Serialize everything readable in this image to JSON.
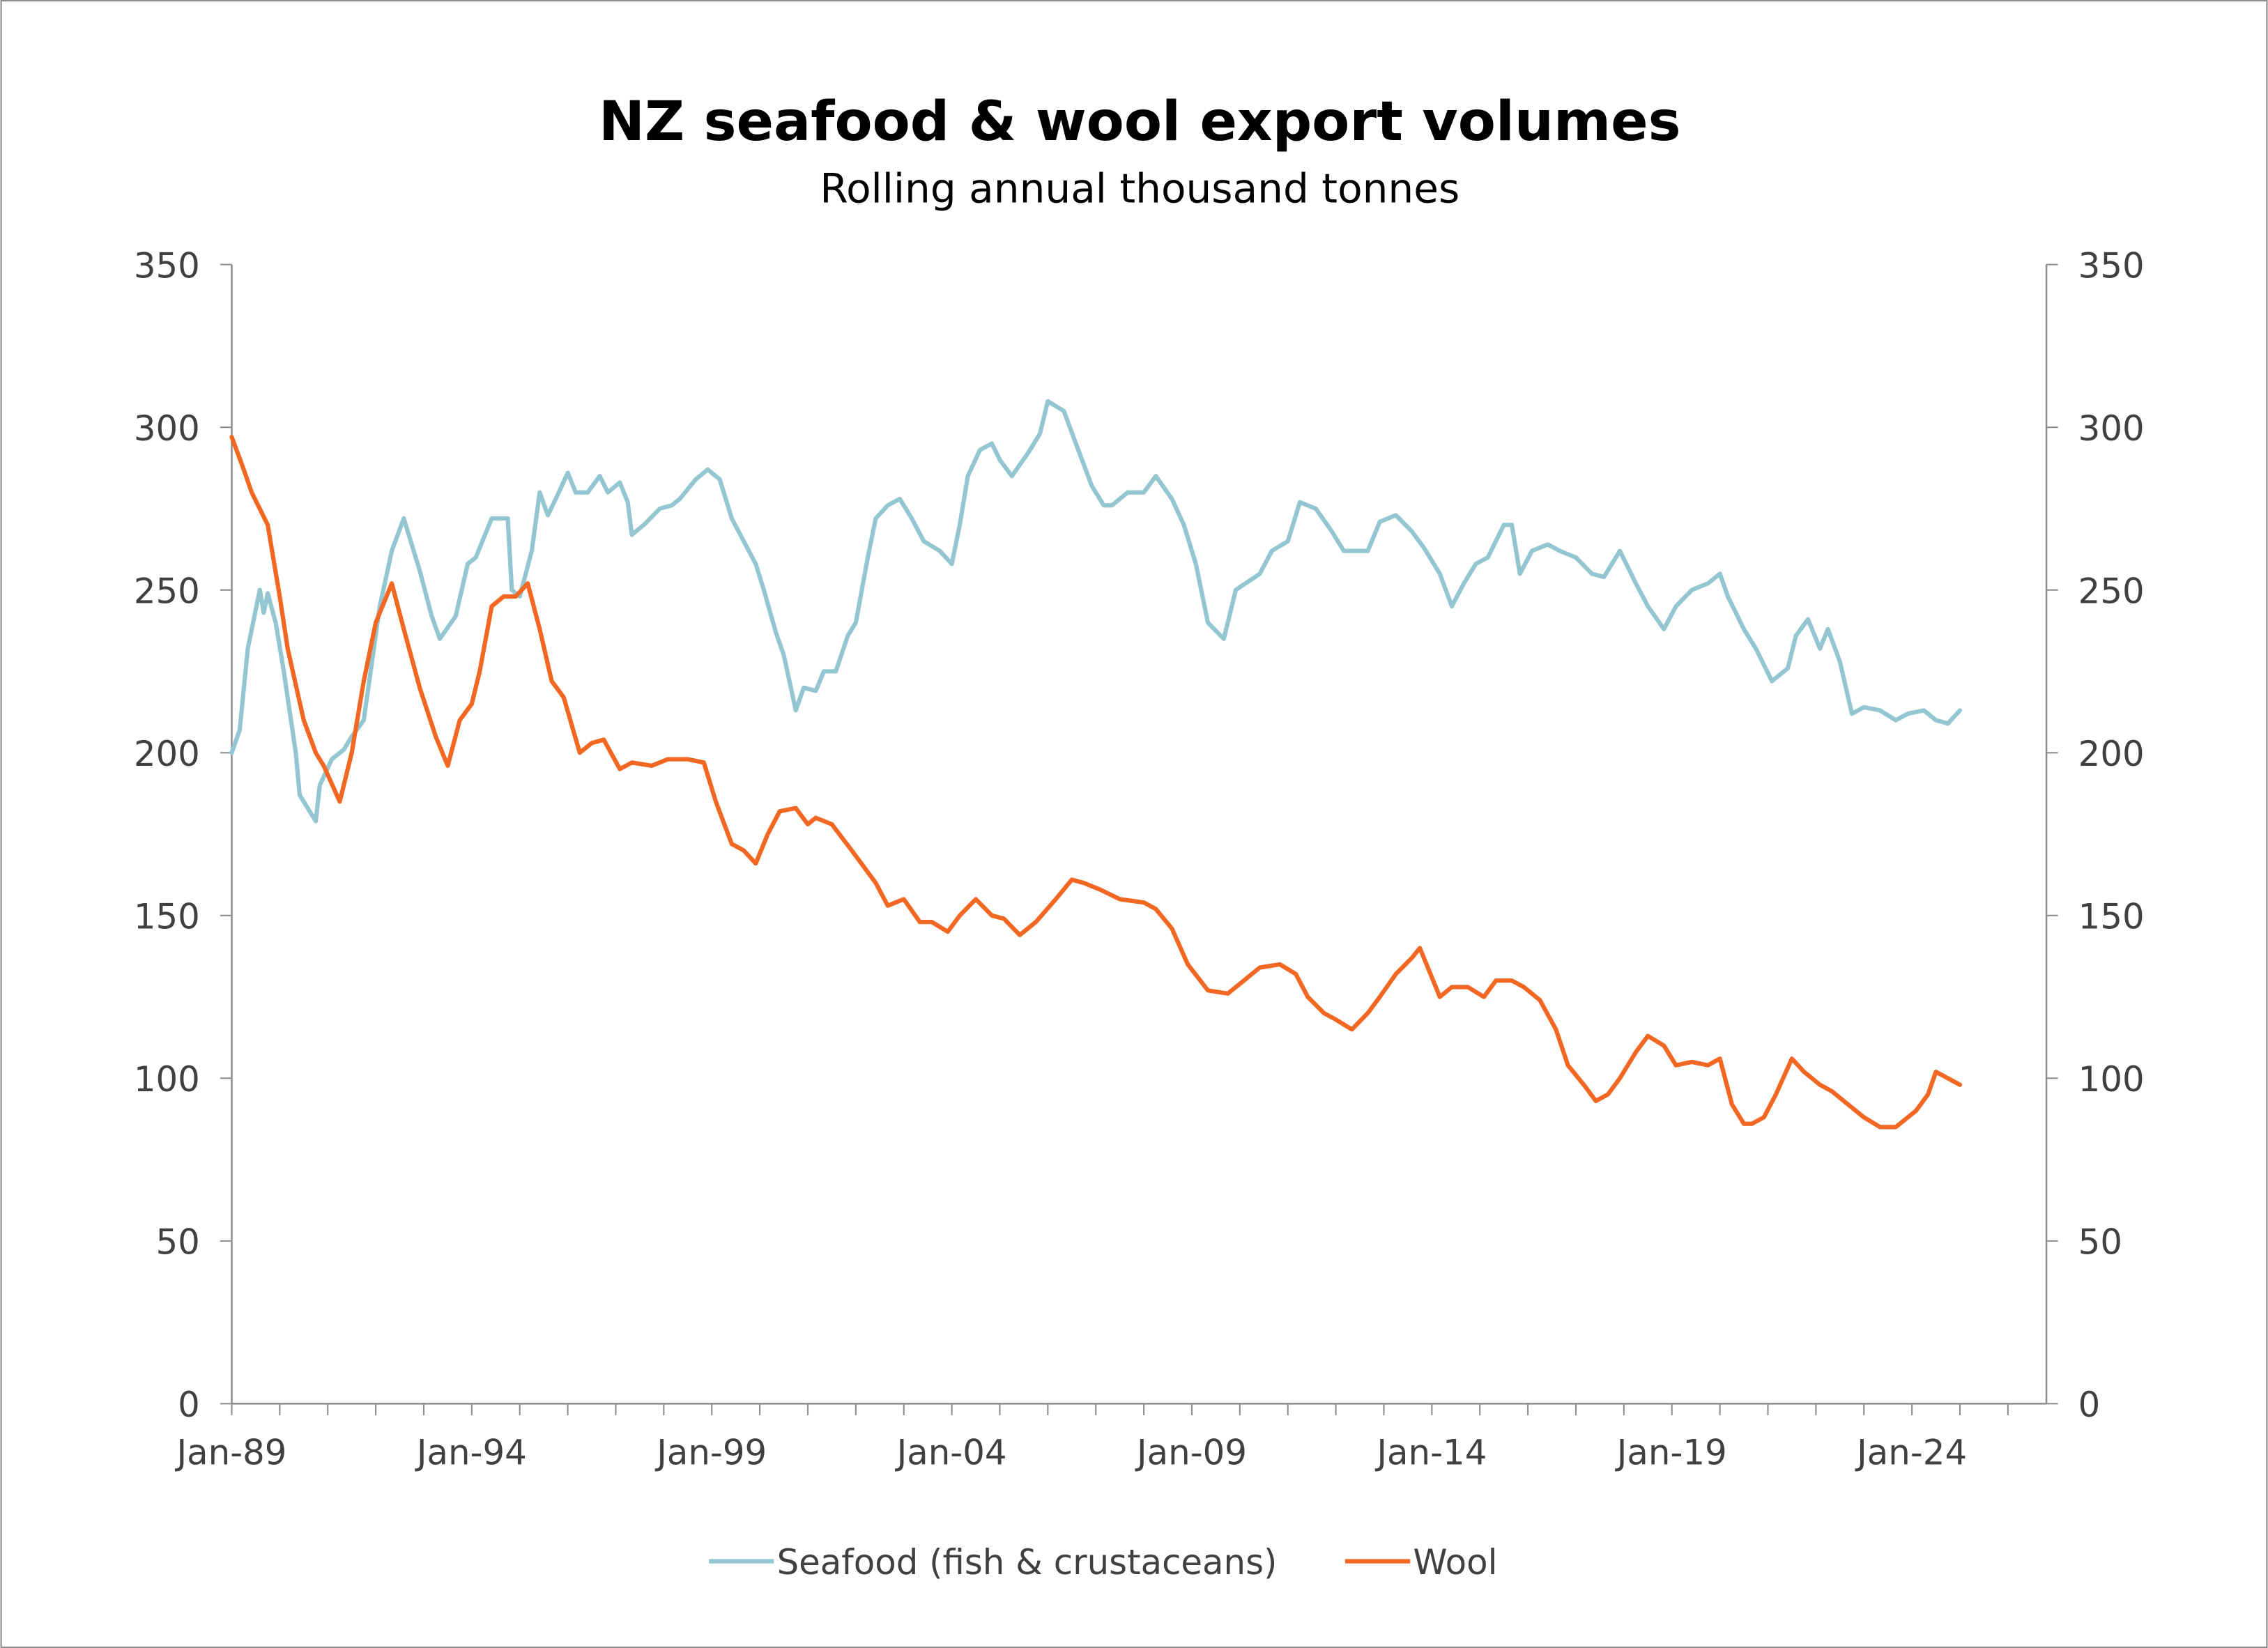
{
  "chart_data": {
    "type": "line",
    "title": "NZ seafood & wool export volumes",
    "subtitle": "Rolling annual thousand tonnes",
    "xlabel": "",
    "ylabel": "",
    "ylim": [
      0,
      350
    ],
    "y2lim": [
      0,
      350
    ],
    "yticks": [
      "0",
      "50",
      "100",
      "150",
      "200",
      "250",
      "300",
      "350"
    ],
    "xticks": [
      "Jan-89",
      "Jan-94",
      "Jan-99",
      "Jan-04",
      "Jan-09",
      "Jan-14",
      "Jan-19",
      "Jan-24"
    ],
    "xrange": [
      "1989-01",
      "2026-09"
    ],
    "grid": false,
    "legend_position": "bottom",
    "series": [
      {
        "name": "Seafood (fish & crustaceans)",
        "color": "#94C6D1",
        "points": [
          [
            "1989-01",
            200
          ],
          [
            "1989-03",
            207
          ],
          [
            "1989-05",
            232
          ],
          [
            "1989-08",
            250
          ],
          [
            "1989-09",
            243
          ],
          [
            "1989-10",
            249
          ],
          [
            "1989-12",
            240
          ],
          [
            "1990-02",
            225
          ],
          [
            "1990-05",
            200
          ],
          [
            "1990-06",
            187
          ],
          [
            "1990-10",
            179
          ],
          [
            "1990-11",
            190
          ],
          [
            "1991-02",
            198
          ],
          [
            "1991-05",
            201
          ],
          [
            "1991-07",
            205
          ],
          [
            "1991-10",
            210
          ],
          [
            "1992-02",
            245
          ],
          [
            "1992-05",
            262
          ],
          [
            "1992-08",
            272
          ],
          [
            "1992-09",
            268
          ],
          [
            "1992-12",
            256
          ],
          [
            "1993-03",
            242
          ],
          [
            "1993-05",
            235
          ],
          [
            "1993-09",
            242
          ],
          [
            "1993-12",
            258
          ],
          [
            "1994-02",
            260
          ],
          [
            "1994-06",
            272
          ],
          [
            "1994-10",
            272
          ],
          [
            "1994-11",
            250
          ],
          [
            "1995-01",
            248
          ],
          [
            "1995-04",
            262
          ],
          [
            "1995-06",
            280
          ],
          [
            "1995-08",
            273
          ],
          [
            "1995-10",
            278
          ],
          [
            "1996-01",
            286
          ],
          [
            "1996-03",
            280
          ],
          [
            "1996-06",
            280
          ],
          [
            "1996-09",
            285
          ],
          [
            "1996-11",
            280
          ],
          [
            "1997-02",
            283
          ],
          [
            "1997-04",
            277
          ],
          [
            "1997-05",
            267
          ],
          [
            "1997-08",
            270
          ],
          [
            "1997-12",
            275
          ],
          [
            "1998-03",
            276
          ],
          [
            "1998-05",
            278
          ],
          [
            "1998-09",
            284
          ],
          [
            "1998-12",
            287
          ],
          [
            "1999-03",
            284
          ],
          [
            "1999-06",
            272
          ],
          [
            "1999-09",
            265
          ],
          [
            "1999-12",
            258
          ],
          [
            "2000-02",
            250
          ],
          [
            "2000-05",
            237
          ],
          [
            "2000-07",
            230
          ],
          [
            "2000-10",
            213
          ],
          [
            "2000-12",
            220
          ],
          [
            "2001-03",
            219
          ],
          [
            "2001-05",
            225
          ],
          [
            "2001-08",
            225
          ],
          [
            "2001-11",
            236
          ],
          [
            "2002-01",
            240
          ],
          [
            "2002-04",
            260
          ],
          [
            "2002-06",
            272
          ],
          [
            "2002-09",
            276
          ],
          [
            "2002-12",
            278
          ],
          [
            "2003-03",
            272
          ],
          [
            "2003-06",
            265
          ],
          [
            "2003-10",
            262
          ],
          [
            "2004-01",
            258
          ],
          [
            "2004-03",
            270
          ],
          [
            "2004-05",
            285
          ],
          [
            "2004-08",
            293
          ],
          [
            "2004-11",
            295
          ],
          [
            "2005-01",
            290
          ],
          [
            "2005-04",
            285
          ],
          [
            "2005-08",
            292
          ],
          [
            "2005-11",
            298
          ],
          [
            "2006-01",
            308
          ],
          [
            "2006-05",
            305
          ],
          [
            "2006-08",
            295
          ],
          [
            "2006-12",
            282
          ],
          [
            "2007-03",
            276
          ],
          [
            "2007-05",
            276
          ],
          [
            "2007-09",
            280
          ],
          [
            "2008-01",
            280
          ],
          [
            "2008-04",
            285
          ],
          [
            "2008-08",
            278
          ],
          [
            "2008-11",
            270
          ],
          [
            "2009-02",
            258
          ],
          [
            "2009-05",
            240
          ],
          [
            "2009-09",
            235
          ],
          [
            "2009-12",
            250
          ],
          [
            "2010-06",
            255
          ],
          [
            "2010-09",
            262
          ],
          [
            "2011-01",
            265
          ],
          [
            "2011-04",
            277
          ],
          [
            "2011-08",
            275
          ],
          [
            "2011-12",
            268
          ],
          [
            "2012-03",
            262
          ],
          [
            "2012-09",
            262
          ],
          [
            "2012-12",
            271
          ],
          [
            "2013-04",
            273
          ],
          [
            "2013-08",
            268
          ],
          [
            "2013-11",
            263
          ],
          [
            "2014-03",
            255
          ],
          [
            "2014-06",
            245
          ],
          [
            "2014-09",
            252
          ],
          [
            "2014-12",
            258
          ],
          [
            "2015-03",
            260
          ],
          [
            "2015-07",
            270
          ],
          [
            "2015-09",
            270
          ],
          [
            "2015-11",
            255
          ],
          [
            "2016-02",
            262
          ],
          [
            "2016-06",
            264
          ],
          [
            "2016-09",
            262
          ],
          [
            "2017-01",
            260
          ],
          [
            "2017-05",
            255
          ],
          [
            "2017-08",
            254
          ],
          [
            "2017-12",
            262
          ],
          [
            "2018-04",
            252
          ],
          [
            "2018-07",
            245
          ],
          [
            "2018-11",
            238
          ],
          [
            "2019-02",
            245
          ],
          [
            "2019-06",
            250
          ],
          [
            "2019-10",
            252
          ],
          [
            "2020-01",
            255
          ],
          [
            "2020-03",
            248
          ],
          [
            "2020-07",
            238
          ],
          [
            "2020-10",
            232
          ],
          [
            "2021-02",
            222
          ],
          [
            "2021-06",
            226
          ],
          [
            "2021-08",
            236
          ],
          [
            "2021-11",
            241
          ],
          [
            "2022-02",
            232
          ],
          [
            "2022-04",
            238
          ],
          [
            "2022-07",
            228
          ],
          [
            "2022-10",
            212
          ],
          [
            "2023-01",
            214
          ],
          [
            "2023-05",
            213
          ],
          [
            "2023-09",
            210
          ],
          [
            "2023-12",
            212
          ],
          [
            "2024-04",
            213
          ],
          [
            "2024-07",
            210
          ],
          [
            "2024-10",
            209
          ],
          [
            "2025-01",
            213
          ]
        ]
      },
      {
        "name": "Wool",
        "color": "#F26722",
        "points": [
          [
            "1989-01",
            297
          ],
          [
            "1989-04",
            287
          ],
          [
            "1989-06",
            280
          ],
          [
            "1989-10",
            270
          ],
          [
            "1990-01",
            248
          ],
          [
            "1990-03",
            232
          ],
          [
            "1990-07",
            210
          ],
          [
            "1990-10",
            200
          ],
          [
            "1990-12",
            196
          ],
          [
            "1991-04",
            185
          ],
          [
            "1991-07",
            200
          ],
          [
            "1991-10",
            222
          ],
          [
            "1992-01",
            240
          ],
          [
            "1992-05",
            252
          ],
          [
            "1992-08",
            238
          ],
          [
            "1992-12",
            220
          ],
          [
            "1993-04",
            205
          ],
          [
            "1993-07",
            196
          ],
          [
            "1993-10",
            210
          ],
          [
            "1994-01",
            215
          ],
          [
            "1994-03",
            225
          ],
          [
            "1994-06",
            245
          ],
          [
            "1994-09",
            248
          ],
          [
            "1994-12",
            248
          ],
          [
            "1995-03",
            252
          ],
          [
            "1995-06",
            238
          ],
          [
            "1995-09",
            222
          ],
          [
            "1995-12",
            217
          ],
          [
            "1996-04",
            200
          ],
          [
            "1996-07",
            203
          ],
          [
            "1996-10",
            204
          ],
          [
            "1997-02",
            195
          ],
          [
            "1997-05",
            197
          ],
          [
            "1997-10",
            196
          ],
          [
            "1998-02",
            198
          ],
          [
            "1998-07",
            198
          ],
          [
            "1998-11",
            197
          ],
          [
            "1999-02",
            185
          ],
          [
            "1999-06",
            172
          ],
          [
            "1999-09",
            170
          ],
          [
            "1999-12",
            166
          ],
          [
            "2000-03",
            175
          ],
          [
            "2000-06",
            182
          ],
          [
            "2000-10",
            183
          ],
          [
            "2001-01",
            178
          ],
          [
            "2001-03",
            180
          ],
          [
            "2001-07",
            178
          ],
          [
            "2001-12",
            170
          ],
          [
            "2002-06",
            160
          ],
          [
            "2002-09",
            153
          ],
          [
            "2003-01",
            155
          ],
          [
            "2003-05",
            148
          ],
          [
            "2003-08",
            148
          ],
          [
            "2003-12",
            145
          ],
          [
            "2004-03",
            150
          ],
          [
            "2004-07",
            155
          ],
          [
            "2004-11",
            150
          ],
          [
            "2005-02",
            149
          ],
          [
            "2005-06",
            144
          ],
          [
            "2005-10",
            148
          ],
          [
            "2006-03",
            155
          ],
          [
            "2006-07",
            161
          ],
          [
            "2006-10",
            160
          ],
          [
            "2007-02",
            158
          ],
          [
            "2007-07",
            155
          ],
          [
            "2008-01",
            154
          ],
          [
            "2008-04",
            152
          ],
          [
            "2008-08",
            146
          ],
          [
            "2008-12",
            135
          ],
          [
            "2009-05",
            127
          ],
          [
            "2009-10",
            126
          ],
          [
            "2010-02",
            130
          ],
          [
            "2010-06",
            134
          ],
          [
            "2010-11",
            135
          ],
          [
            "2011-03",
            132
          ],
          [
            "2011-06",
            125
          ],
          [
            "2011-10",
            120
          ],
          [
            "2012-01",
            118
          ],
          [
            "2012-05",
            115
          ],
          [
            "2012-09",
            120
          ],
          [
            "2012-12",
            125
          ],
          [
            "2013-04",
            132
          ],
          [
            "2013-08",
            137
          ],
          [
            "2013-10",
            140
          ],
          [
            "2014-03",
            125
          ],
          [
            "2014-06",
            128
          ],
          [
            "2014-10",
            128
          ],
          [
            "2015-02",
            125
          ],
          [
            "2015-05",
            130
          ],
          [
            "2015-09",
            130
          ],
          [
            "2015-12",
            128
          ],
          [
            "2016-04",
            124
          ],
          [
            "2016-08",
            115
          ],
          [
            "2016-11",
            104
          ],
          [
            "2017-03",
            98
          ],
          [
            "2017-06",
            93
          ],
          [
            "2017-09",
            95
          ],
          [
            "2017-12",
            100
          ],
          [
            "2018-04",
            108
          ],
          [
            "2018-07",
            113
          ],
          [
            "2018-11",
            110
          ],
          [
            "2019-02",
            104
          ],
          [
            "2019-06",
            105
          ],
          [
            "2019-10",
            104
          ],
          [
            "2020-01",
            106
          ],
          [
            "2020-04",
            92
          ],
          [
            "2020-07",
            86
          ],
          [
            "2020-09",
            86
          ],
          [
            "2020-12",
            88
          ],
          [
            "2021-03",
            95
          ],
          [
            "2021-07",
            106
          ],
          [
            "2021-10",
            102
          ],
          [
            "2022-02",
            98
          ],
          [
            "2022-05",
            96
          ],
          [
            "2022-09",
            92
          ],
          [
            "2023-01",
            88
          ],
          [
            "2023-05",
            85
          ],
          [
            "2023-09",
            85
          ],
          [
            "2023-12",
            88
          ],
          [
            "2024-02",
            90
          ],
          [
            "2024-05",
            95
          ],
          [
            "2024-07",
            102
          ],
          [
            "2024-10",
            100
          ],
          [
            "2025-01",
            98
          ]
        ]
      }
    ]
  }
}
